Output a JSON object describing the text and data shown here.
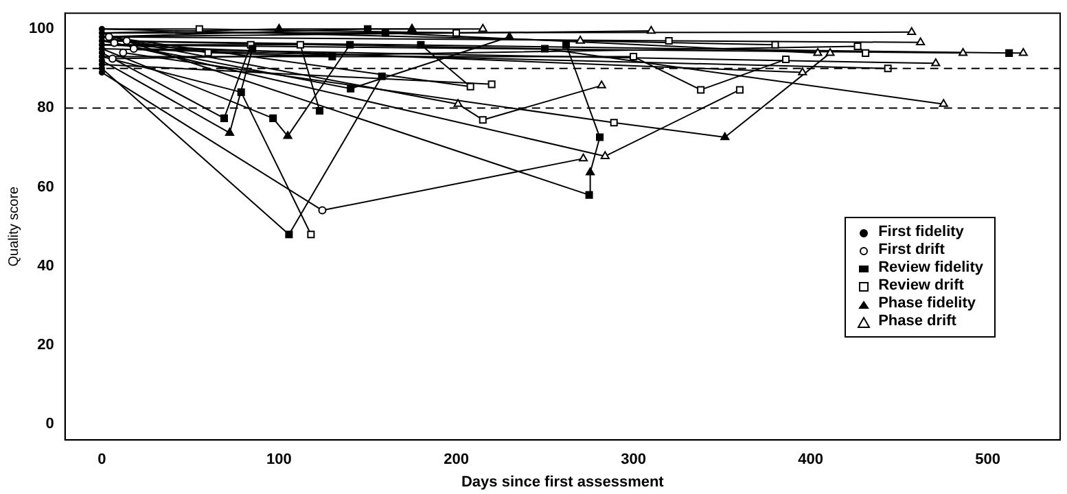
{
  "chart_data": {
    "type": "scatter",
    "xlabel": "Days since first assessment",
    "ylabel": "Quality score",
    "xlim": [
      -20.8,
      540.8
    ],
    "ylim": [
      -4,
      104
    ],
    "xticks": [
      0,
      100,
      200,
      300,
      400,
      500
    ],
    "yticks": [
      0,
      20,
      40,
      60,
      80,
      100
    ],
    "grid": false,
    "legend": "right",
    "ref_lines": [
      {
        "axis": "y",
        "value": 90,
        "line_style": "dashed",
        "color": "#000000"
      },
      {
        "axis": "y",
        "value": 80,
        "line_style": "dashed",
        "color": "#000000"
      }
    ],
    "series": [
      {
        "type": "line",
        "color": "#000000",
        "marker": "none",
        "x": [
          0,
          105.6,
          158
        ],
        "values": [
          90,
          48,
          88
        ]
      },
      {
        "type": "line",
        "color": "#000000",
        "marker": "none",
        "x": [
          0,
          124.4,
          271.7
        ],
        "values": [
          89,
          54.1,
          67.2
        ]
      },
      {
        "type": "line",
        "color": "#000000",
        "marker": "none",
        "x": [
          0,
          78.6,
          118
        ],
        "values": [
          93,
          84,
          48
        ]
      },
      {
        "type": "line",
        "color": "#000000",
        "marker": "none",
        "x": [
          0,
          72.1,
          85
        ],
        "values": [
          92,
          73.7,
          95
        ]
      },
      {
        "type": "line",
        "color": "#000000",
        "marker": "none",
        "x": [
          0,
          69,
          84
        ],
        "values": [
          94,
          77.4,
          96
        ]
      },
      {
        "type": "line",
        "color": "#000000",
        "marker": "none",
        "x": [
          0,
          96.6,
          104.9,
          140
        ],
        "values": [
          95,
          77.4,
          72.9,
          96
        ]
      },
      {
        "type": "line",
        "color": "#000000",
        "marker": "none",
        "x": [
          0,
          112,
          122.9
        ],
        "values": [
          96,
          96,
          79.3
        ]
      },
      {
        "type": "line",
        "color": "#000000",
        "marker": "none",
        "x": [
          0,
          140.4,
          230
        ],
        "values": [
          97,
          84.9,
          98
        ]
      },
      {
        "type": "line",
        "color": "#000000",
        "marker": "none",
        "x": [
          0,
          201,
          215,
          282
        ],
        "values": [
          98,
          81,
          77,
          85.7
        ]
      },
      {
        "type": "line",
        "color": "#000000",
        "marker": "none",
        "x": [
          4,
          208,
          180
        ],
        "values": [
          98,
          85.4,
          96
        ]
      },
      {
        "type": "line",
        "color": "#000000",
        "marker": "none",
        "x": [
          0,
          275,
          275.6,
          281,
          262
        ],
        "values": [
          99,
          58,
          63.7,
          72.6,
          96
        ]
      },
      {
        "type": "line",
        "color": "#000000",
        "marker": "none",
        "x": [
          7,
          284,
          360
        ],
        "values": [
          96.5,
          67.8,
          84.6
        ]
      },
      {
        "type": "line",
        "color": "#000000",
        "marker": "none",
        "x": [
          12,
          289,
          351.6,
          411
        ],
        "values": [
          94,
          76.3,
          72.6,
          93.9
        ]
      },
      {
        "type": "line",
        "color": "#000000",
        "marker": "none",
        "x": [
          0,
          300,
          338,
          386
        ],
        "values": [
          93,
          93,
          84.6,
          92.3
        ]
      },
      {
        "type": "line",
        "color": "#000000",
        "marker": "none",
        "x": [
          0,
          250,
          475
        ],
        "values": [
          97,
          95,
          81
        ]
      },
      {
        "type": "line",
        "color": "#000000",
        "marker": "none",
        "x": [
          0,
          457
        ],
        "values": [
          99,
          99.2
        ]
      },
      {
        "type": "line",
        "color": "#000000",
        "marker": "none",
        "x": [
          0,
          320,
          462
        ],
        "values": [
          98,
          97,
          96.6
        ]
      },
      {
        "type": "line",
        "color": "#000000",
        "marker": "none",
        "x": [
          0,
          512,
          520
        ],
        "values": [
          97,
          93.9,
          93.9
        ]
      },
      {
        "type": "line",
        "color": "#000000",
        "marker": "none",
        "x": [
          0,
          486
        ],
        "values": [
          96,
          93.9
        ]
      },
      {
        "type": "line",
        "color": "#000000",
        "marker": "none",
        "x": [
          0,
          443.6
        ],
        "values": [
          95,
          90
        ]
      },
      {
        "type": "line",
        "color": "#000000",
        "marker": "none",
        "x": [
          6,
          426.5,
          431
        ],
        "values": [
          92.5,
          95.6,
          93.9
        ]
      },
      {
        "type": "line",
        "color": "#000000",
        "marker": "none",
        "x": [
          0,
          310
        ],
        "values": [
          98,
          99.5
        ]
      },
      {
        "type": "line",
        "color": "#000000",
        "marker": "none",
        "x": [
          0,
          160,
          404
        ],
        "values": [
          99,
          99,
          93.9
        ]
      },
      {
        "type": "line",
        "color": "#000000",
        "marker": "none",
        "x": [
          0,
          55,
          200
        ],
        "values": [
          100,
          100,
          99
        ]
      },
      {
        "type": "line",
        "color": "#000000",
        "marker": "none",
        "x": [
          18,
          470.6
        ],
        "values": [
          95,
          91.3
        ]
      },
      {
        "type": "line",
        "color": "#000000",
        "marker": "none",
        "x": [
          0,
          395.4
        ],
        "values": [
          96,
          89
        ]
      },
      {
        "type": "line",
        "color": "#000000",
        "marker": "none",
        "x": [
          0,
          220
        ],
        "values": [
          91,
          86
        ]
      },
      {
        "type": "line",
        "color": "#000000",
        "marker": "none",
        "x": [
          0,
          100,
          175
        ],
        "values": [
          99,
          100,
          100
        ]
      },
      {
        "type": "line",
        "color": "#000000",
        "marker": "none",
        "x": [
          14,
          60,
          130
        ],
        "values": [
          97,
          94,
          93
        ]
      },
      {
        "type": "line",
        "color": "#000000",
        "marker": "none",
        "x": [
          0,
          270,
          380
        ],
        "values": [
          100,
          97,
          96
        ]
      },
      {
        "type": "line",
        "color": "#000000",
        "marker": "none",
        "x": [
          0,
          150,
          215
        ],
        "values": [
          98,
          100,
          100
        ]
      },
      {
        "type": "scatter",
        "name": "First fidelity",
        "color": "#000000",
        "marker": "circle",
        "x": [
          0,
          0,
          0,
          0,
          0,
          0,
          0,
          0,
          0,
          0,
          0,
          0
        ],
        "values": [
          89,
          90,
          91,
          92,
          93,
          94,
          95,
          96,
          97,
          98,
          99,
          100
        ]
      },
      {
        "type": "scatter",
        "name": "First drift",
        "color": "#000000",
        "marker": "circle-open",
        "x": [
          124.4,
          4,
          7,
          12,
          6,
          18,
          14
        ],
        "values": [
          54.1,
          98,
          96.5,
          94,
          92.5,
          95,
          97
        ]
      },
      {
        "type": "scatter",
        "name": "Review fidelity",
        "color": "#000000",
        "marker": "square",
        "x": [
          105.6,
          158,
          78.6,
          85,
          69,
          96.6,
          140,
          122.9,
          140.4,
          180,
          275,
          281,
          262,
          250,
          512,
          160,
          130,
          150
        ],
        "values": [
          48,
          88,
          84,
          95,
          77.4,
          77.4,
          96,
          79.3,
          84.9,
          96,
          58,
          72.6,
          96,
          95,
          93.9,
          99,
          93,
          100
        ]
      },
      {
        "type": "scatter",
        "name": "Review drift",
        "color": "#000000",
        "marker": "square-open",
        "x": [
          118,
          84,
          112,
          215,
          208,
          360,
          289,
          300,
          338,
          386,
          320,
          443.6,
          426.5,
          431,
          55,
          200,
          220,
          60,
          380
        ],
        "values": [
          48,
          96,
          96,
          77,
          85.4,
          84.6,
          76.3,
          93,
          84.6,
          92.3,
          97,
          90,
          95.6,
          93.9,
          100,
          99,
          86,
          94,
          96
        ]
      },
      {
        "type": "scatter",
        "name": "Phase fidelity",
        "color": "#000000",
        "marker": "triangle",
        "x": [
          72.1,
          104.9,
          230,
          275.6,
          351.6,
          100,
          175
        ],
        "values": [
          73.7,
          72.9,
          98,
          63.7,
          72.6,
          100,
          100
        ]
      },
      {
        "type": "scatter",
        "name": "Phase drift",
        "color": "#000000",
        "marker": "triangle-open",
        "x": [
          271.7,
          201,
          282,
          284,
          411,
          475,
          457,
          462,
          520,
          486,
          310,
          404,
          470.6,
          395.4,
          270,
          215
        ],
        "values": [
          67.2,
          81,
          85.7,
          67.8,
          93.9,
          81,
          99.2,
          96.6,
          93.9,
          93.9,
          99.5,
          93.9,
          91.3,
          89,
          97,
          100
        ]
      }
    ]
  }
}
